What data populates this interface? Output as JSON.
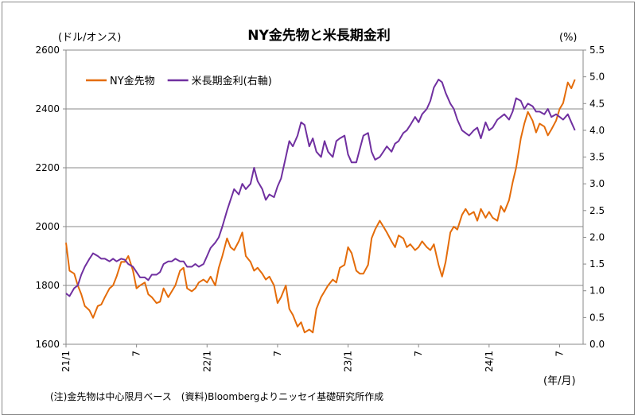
{
  "chart_data": {
    "type": "line",
    "title": "NY金先物と米長期金利",
    "left_unit": "(ドル/オンス)",
    "right_unit": "(%)",
    "x_unit": "(年/月)",
    "note": "(注)金先物は中心限月ベース　(資料)Bloombergよりニッセイ基礎研究所作成",
    "x_tick_labels": [
      "21/1",
      "7",
      "22/1",
      "7",
      "23/1",
      "7",
      "24/1",
      "7"
    ],
    "x_tick_months": [
      0,
      6,
      12,
      18,
      24,
      30,
      36,
      42
    ],
    "x_range_months": [
      0,
      44
    ],
    "y_left": {
      "range": [
        1600,
        2600
      ],
      "ticks": [
        1600,
        1800,
        2000,
        2200,
        2400,
        2600
      ]
    },
    "y_right": {
      "range": [
        0.0,
        5.5
      ],
      "ticks": [
        "0.0",
        "0.5",
        "1.0",
        "1.5",
        "2.0",
        "2.5",
        "3.0",
        "3.5",
        "4.0",
        "4.5",
        "5.0",
        "5.5"
      ]
    },
    "grid": true,
    "legend_position": "top-left",
    "series": [
      {
        "name": "NY金先物",
        "axis": "left",
        "color": "#E46C0A",
        "points": [
          [
            0.0,
            1945
          ],
          [
            0.3,
            1850
          ],
          [
            0.7,
            1840
          ],
          [
            1.0,
            1800
          ],
          [
            1.3,
            1770
          ],
          [
            1.6,
            1730
          ],
          [
            2.0,
            1715
          ],
          [
            2.3,
            1690
          ],
          [
            2.7,
            1730
          ],
          [
            3.0,
            1735
          ],
          [
            3.3,
            1760
          ],
          [
            3.7,
            1790
          ],
          [
            4.0,
            1800
          ],
          [
            4.3,
            1830
          ],
          [
            4.7,
            1880
          ],
          [
            5.0,
            1880
          ],
          [
            5.3,
            1900
          ],
          [
            5.7,
            1850
          ],
          [
            6.0,
            1790
          ],
          [
            6.3,
            1800
          ],
          [
            6.7,
            1810
          ],
          [
            7.0,
            1770
          ],
          [
            7.3,
            1760
          ],
          [
            7.7,
            1740
          ],
          [
            8.0,
            1745
          ],
          [
            8.3,
            1790
          ],
          [
            8.7,
            1760
          ],
          [
            9.0,
            1780
          ],
          [
            9.3,
            1800
          ],
          [
            9.7,
            1850
          ],
          [
            10.0,
            1860
          ],
          [
            10.3,
            1790
          ],
          [
            10.7,
            1780
          ],
          [
            11.0,
            1790
          ],
          [
            11.3,
            1810
          ],
          [
            11.7,
            1820
          ],
          [
            12.0,
            1810
          ],
          [
            12.3,
            1830
          ],
          [
            12.7,
            1800
          ],
          [
            13.0,
            1860
          ],
          [
            13.3,
            1900
          ],
          [
            13.7,
            1960
          ],
          [
            14.0,
            1930
          ],
          [
            14.3,
            1920
          ],
          [
            14.7,
            1950
          ],
          [
            15.0,
            1980
          ],
          [
            15.3,
            1900
          ],
          [
            15.7,
            1880
          ],
          [
            16.0,
            1850
          ],
          [
            16.3,
            1860
          ],
          [
            16.7,
            1840
          ],
          [
            17.0,
            1820
          ],
          [
            17.3,
            1830
          ],
          [
            17.7,
            1800
          ],
          [
            18.0,
            1740
          ],
          [
            18.3,
            1760
          ],
          [
            18.7,
            1800
          ],
          [
            19.0,
            1720
          ],
          [
            19.3,
            1700
          ],
          [
            19.7,
            1660
          ],
          [
            20.0,
            1675
          ],
          [
            20.3,
            1640
          ],
          [
            20.7,
            1650
          ],
          [
            21.0,
            1640
          ],
          [
            21.3,
            1720
          ],
          [
            21.7,
            1760
          ],
          [
            22.0,
            1780
          ],
          [
            22.3,
            1800
          ],
          [
            22.7,
            1820
          ],
          [
            23.0,
            1810
          ],
          [
            23.3,
            1860
          ],
          [
            23.7,
            1870
          ],
          [
            24.0,
            1930
          ],
          [
            24.3,
            1910
          ],
          [
            24.7,
            1850
          ],
          [
            25.0,
            1840
          ],
          [
            25.3,
            1840
          ],
          [
            25.7,
            1870
          ],
          [
            26.0,
            1960
          ],
          [
            26.3,
            1990
          ],
          [
            26.7,
            2020
          ],
          [
            27.0,
            2000
          ],
          [
            27.3,
            1980
          ],
          [
            27.7,
            1950
          ],
          [
            28.0,
            1930
          ],
          [
            28.3,
            1970
          ],
          [
            28.7,
            1960
          ],
          [
            29.0,
            1930
          ],
          [
            29.3,
            1940
          ],
          [
            29.7,
            1920
          ],
          [
            30.0,
            1930
          ],
          [
            30.3,
            1950
          ],
          [
            30.7,
            1930
          ],
          [
            31.0,
            1920
          ],
          [
            31.3,
            1940
          ],
          [
            31.7,
            1870
          ],
          [
            32.0,
            1830
          ],
          [
            32.3,
            1880
          ],
          [
            32.7,
            1980
          ],
          [
            33.0,
            2000
          ],
          [
            33.3,
            1990
          ],
          [
            33.7,
            2040
          ],
          [
            34.0,
            2060
          ],
          [
            34.3,
            2040
          ],
          [
            34.7,
            2050
          ],
          [
            35.0,
            2020
          ],
          [
            35.3,
            2060
          ],
          [
            35.7,
            2030
          ],
          [
            36.0,
            2050
          ],
          [
            36.3,
            2030
          ],
          [
            36.7,
            2020
          ],
          [
            37.0,
            2070
          ],
          [
            37.3,
            2050
          ],
          [
            37.7,
            2090
          ],
          [
            38.0,
            2150
          ],
          [
            38.3,
            2200
          ],
          [
            38.7,
            2300
          ],
          [
            39.0,
            2350
          ],
          [
            39.3,
            2390
          ],
          [
            39.7,
            2360
          ],
          [
            40.0,
            2320
          ],
          [
            40.3,
            2350
          ],
          [
            40.7,
            2340
          ],
          [
            41.0,
            2310
          ],
          [
            41.3,
            2330
          ],
          [
            41.7,
            2360
          ],
          [
            42.0,
            2400
          ],
          [
            42.3,
            2420
          ],
          [
            42.7,
            2490
          ],
          [
            43.0,
            2470
          ],
          [
            43.3,
            2500
          ]
        ]
      },
      {
        "name": "米長期金利(右軸)",
        "axis": "right",
        "color": "#7030A0",
        "points": [
          [
            0.0,
            0.95
          ],
          [
            0.3,
            0.9
          ],
          [
            0.7,
            1.05
          ],
          [
            1.0,
            1.1
          ],
          [
            1.3,
            1.3
          ],
          [
            1.6,
            1.45
          ],
          [
            2.0,
            1.6
          ],
          [
            2.3,
            1.7
          ],
          [
            2.7,
            1.65
          ],
          [
            3.0,
            1.6
          ],
          [
            3.3,
            1.6
          ],
          [
            3.7,
            1.55
          ],
          [
            4.0,
            1.6
          ],
          [
            4.3,
            1.55
          ],
          [
            4.7,
            1.6
          ],
          [
            5.0,
            1.58
          ],
          [
            5.3,
            1.5
          ],
          [
            5.7,
            1.45
          ],
          [
            6.0,
            1.35
          ],
          [
            6.3,
            1.25
          ],
          [
            6.7,
            1.25
          ],
          [
            7.0,
            1.2
          ],
          [
            7.3,
            1.3
          ],
          [
            7.7,
            1.3
          ],
          [
            8.0,
            1.35
          ],
          [
            8.3,
            1.5
          ],
          [
            8.7,
            1.55
          ],
          [
            9.0,
            1.55
          ],
          [
            9.3,
            1.6
          ],
          [
            9.7,
            1.55
          ],
          [
            10.0,
            1.55
          ],
          [
            10.3,
            1.45
          ],
          [
            10.7,
            1.45
          ],
          [
            11.0,
            1.5
          ],
          [
            11.3,
            1.45
          ],
          [
            11.7,
            1.5
          ],
          [
            12.0,
            1.65
          ],
          [
            12.3,
            1.8
          ],
          [
            12.7,
            1.9
          ],
          [
            13.0,
            2.0
          ],
          [
            13.3,
            2.2
          ],
          [
            13.7,
            2.5
          ],
          [
            14.0,
            2.7
          ],
          [
            14.3,
            2.9
          ],
          [
            14.7,
            2.8
          ],
          [
            15.0,
            3.0
          ],
          [
            15.3,
            2.9
          ],
          [
            15.7,
            3.0
          ],
          [
            16.0,
            3.3
          ],
          [
            16.3,
            3.05
          ],
          [
            16.7,
            2.9
          ],
          [
            17.0,
            2.7
          ],
          [
            17.3,
            2.8
          ],
          [
            17.7,
            2.75
          ],
          [
            18.0,
            2.95
          ],
          [
            18.3,
            3.1
          ],
          [
            18.7,
            3.5
          ],
          [
            19.0,
            3.8
          ],
          [
            19.3,
            3.7
          ],
          [
            19.7,
            3.9
          ],
          [
            20.0,
            4.15
          ],
          [
            20.3,
            4.1
          ],
          [
            20.7,
            3.7
          ],
          [
            21.0,
            3.85
          ],
          [
            21.3,
            3.6
          ],
          [
            21.7,
            3.5
          ],
          [
            22.0,
            3.8
          ],
          [
            22.3,
            3.6
          ],
          [
            22.7,
            3.5
          ],
          [
            23.0,
            3.8
          ],
          [
            23.3,
            3.85
          ],
          [
            23.7,
            3.9
          ],
          [
            24.0,
            3.55
          ],
          [
            24.3,
            3.4
          ],
          [
            24.7,
            3.4
          ],
          [
            25.0,
            3.65
          ],
          [
            25.3,
            3.9
          ],
          [
            25.7,
            3.95
          ],
          [
            26.0,
            3.6
          ],
          [
            26.3,
            3.45
          ],
          [
            26.7,
            3.5
          ],
          [
            27.0,
            3.6
          ],
          [
            27.3,
            3.7
          ],
          [
            27.7,
            3.6
          ],
          [
            28.0,
            3.75
          ],
          [
            28.3,
            3.8
          ],
          [
            28.7,
            3.95
          ],
          [
            29.0,
            4.0
          ],
          [
            29.3,
            4.1
          ],
          [
            29.7,
            4.25
          ],
          [
            30.0,
            4.15
          ],
          [
            30.3,
            4.3
          ],
          [
            30.7,
            4.4
          ],
          [
            31.0,
            4.55
          ],
          [
            31.3,
            4.8
          ],
          [
            31.7,
            4.95
          ],
          [
            32.0,
            4.9
          ],
          [
            32.3,
            4.7
          ],
          [
            32.7,
            4.5
          ],
          [
            33.0,
            4.4
          ],
          [
            33.3,
            4.2
          ],
          [
            33.7,
            4.0
          ],
          [
            34.0,
            3.95
          ],
          [
            34.3,
            3.9
          ],
          [
            34.7,
            4.0
          ],
          [
            35.0,
            4.05
          ],
          [
            35.3,
            3.85
          ],
          [
            35.7,
            4.15
          ],
          [
            36.0,
            4.0
          ],
          [
            36.3,
            4.05
          ],
          [
            36.7,
            4.2
          ],
          [
            37.0,
            4.25
          ],
          [
            37.3,
            4.3
          ],
          [
            37.7,
            4.2
          ],
          [
            38.0,
            4.35
          ],
          [
            38.3,
            4.6
          ],
          [
            38.7,
            4.55
          ],
          [
            39.0,
            4.4
          ],
          [
            39.3,
            4.5
          ],
          [
            39.7,
            4.45
          ],
          [
            40.0,
            4.35
          ],
          [
            40.3,
            4.35
          ],
          [
            40.7,
            4.3
          ],
          [
            41.0,
            4.4
          ],
          [
            41.3,
            4.25
          ],
          [
            41.7,
            4.3
          ],
          [
            42.0,
            4.25
          ],
          [
            42.3,
            4.2
          ],
          [
            42.7,
            4.3
          ],
          [
            43.0,
            4.15
          ],
          [
            43.3,
            4.0
          ]
        ]
      }
    ]
  }
}
